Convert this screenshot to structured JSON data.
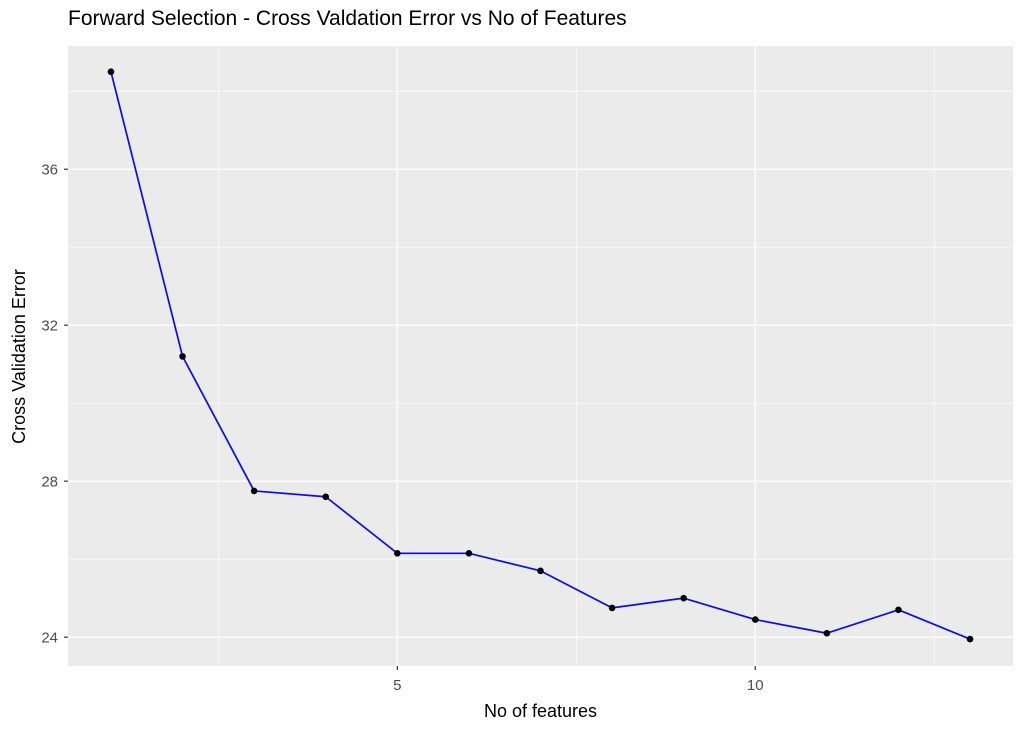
{
  "chart_data": {
    "type": "line",
    "title": "Forward Selection - Cross Valdation Error vs No of Features",
    "xlabel": "No of features",
    "ylabel": "Cross Validation Error",
    "x": [
      1,
      2,
      3,
      4,
      5,
      6,
      7,
      8,
      9,
      10,
      11,
      12,
      13
    ],
    "y": [
      38.5,
      31.2,
      27.75,
      27.6,
      26.15,
      26.15,
      25.7,
      24.75,
      25.0,
      24.45,
      24.1,
      24.7,
      23.95
    ],
    "xlim": [
      0.4,
      13.6
    ],
    "ylim": [
      23.26,
      39.16
    ],
    "x_major_ticks": [
      5,
      10
    ],
    "x_major_tick_labels": [
      "5",
      "10"
    ],
    "x_minor_ticks": [
      2.5,
      7.5,
      12.5
    ],
    "y_major_ticks": [
      24,
      28,
      32,
      36
    ],
    "y_major_tick_labels": [
      "24",
      "28",
      "32",
      "36"
    ],
    "y_minor_ticks": [
      26,
      30,
      34,
      38
    ],
    "grid": "on",
    "legend": "none",
    "colors": {
      "line": "#0B0BEE",
      "point": "#000000",
      "panel_background": "#EBEBEB",
      "gridline": "#FFFFFF",
      "tick_label": "#4D4D4D",
      "tick_mark": "#333333",
      "title_text": "#000000"
    }
  }
}
